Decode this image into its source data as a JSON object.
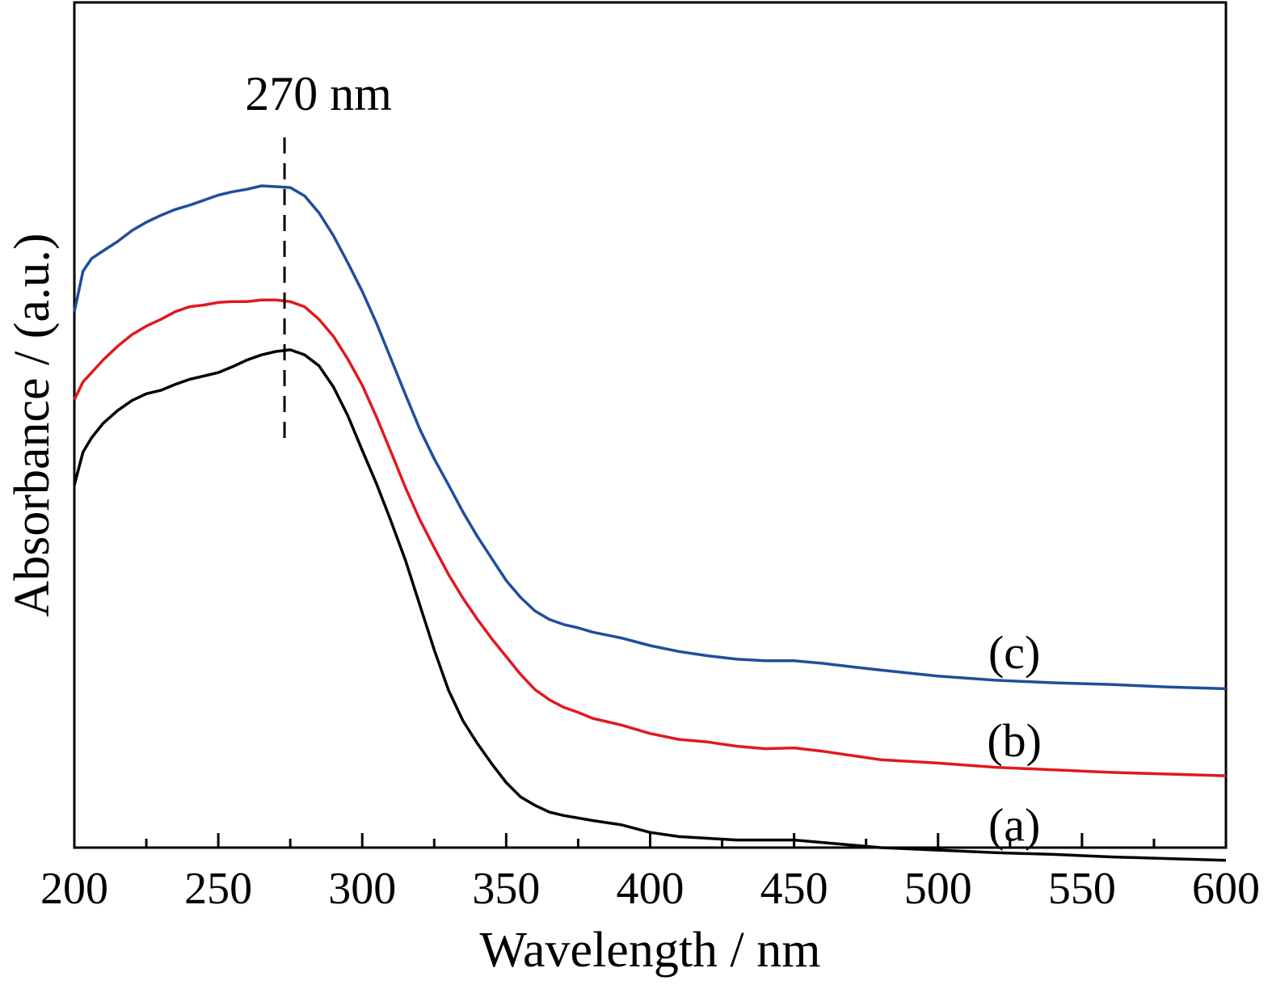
{
  "chart_data": {
    "type": "line",
    "title": "",
    "xlabel": "Wavelength / nm",
    "ylabel": "Absorbance / (a.u.)",
    "xlim": [
      200,
      600
    ],
    "ylim": [
      0,
      1
    ],
    "y_scale_note_free": true,
    "xticks": [
      200,
      250,
      300,
      350,
      400,
      450,
      500,
      550,
      600
    ],
    "grid": false,
    "legend": "none",
    "annotation": {
      "text": "270 nm",
      "x": 273
    },
    "series": [
      {
        "label": "(a)",
        "color": "#000000",
        "x": [
          200,
          203,
          206,
          210,
          215,
          220,
          225,
          230,
          235,
          240,
          245,
          250,
          255,
          260,
          265,
          270,
          275,
          280,
          285,
          290,
          295,
          300,
          305,
          310,
          315,
          320,
          325,
          330,
          335,
          340,
          345,
          350,
          355,
          360,
          365,
          370,
          375,
          380,
          390,
          400,
          410,
          420,
          430,
          440,
          450,
          460,
          470,
          480,
          500,
          520,
          540,
          560,
          580,
          600
        ],
        "y": [
          0.429,
          0.468,
          0.485,
          0.502,
          0.517,
          0.529,
          0.537,
          0.541,
          0.548,
          0.554,
          0.558,
          0.562,
          0.569,
          0.577,
          0.583,
          0.587,
          0.589,
          0.583,
          0.57,
          0.545,
          0.511,
          0.47,
          0.43,
          0.386,
          0.34,
          0.287,
          0.234,
          0.186,
          0.15,
          0.123,
          0.099,
          0.077,
          0.06,
          0.05,
          0.042,
          0.038,
          0.035,
          0.032,
          0.027,
          0.018,
          0.013,
          0.011,
          0.009,
          0.009,
          0.009,
          0.006,
          0.003,
          0.0,
          -0.003,
          -0.006,
          -0.008,
          -0.011,
          -0.013,
          -0.015
        ]
      },
      {
        "label": "(b)",
        "color": "#e0191e",
        "x": [
          200,
          203,
          206,
          210,
          215,
          220,
          225,
          230,
          235,
          240,
          245,
          250,
          255,
          260,
          265,
          270,
          275,
          280,
          285,
          290,
          295,
          300,
          305,
          310,
          315,
          320,
          325,
          330,
          335,
          340,
          345,
          350,
          355,
          360,
          365,
          370,
          375,
          380,
          390,
          400,
          410,
          420,
          430,
          440,
          450,
          460,
          470,
          480,
          500,
          520,
          540,
          560,
          580,
          600
        ],
        "y": [
          0.53,
          0.551,
          0.562,
          0.577,
          0.593,
          0.607,
          0.617,
          0.625,
          0.634,
          0.64,
          0.642,
          0.645,
          0.646,
          0.646,
          0.648,
          0.648,
          0.646,
          0.64,
          0.625,
          0.605,
          0.578,
          0.547,
          0.509,
          0.468,
          0.426,
          0.388,
          0.355,
          0.323,
          0.295,
          0.27,
          0.247,
          0.226,
          0.205,
          0.187,
          0.175,
          0.166,
          0.16,
          0.153,
          0.145,
          0.135,
          0.128,
          0.125,
          0.12,
          0.117,
          0.118,
          0.114,
          0.109,
          0.104,
          0.1,
          0.095,
          0.092,
          0.089,
          0.087,
          0.085
        ]
      },
      {
        "label": "(c)",
        "color": "#1f4e9c",
        "x": [
          200,
          203,
          206,
          210,
          215,
          220,
          225,
          230,
          235,
          240,
          245,
          250,
          255,
          260,
          265,
          270,
          275,
          280,
          285,
          290,
          295,
          300,
          305,
          310,
          315,
          320,
          325,
          330,
          335,
          340,
          345,
          350,
          355,
          360,
          365,
          370,
          375,
          380,
          390,
          400,
          410,
          420,
          430,
          440,
          450,
          460,
          470,
          480,
          500,
          520,
          540,
          560,
          580,
          600
        ],
        "y": [
          0.634,
          0.682,
          0.697,
          0.706,
          0.717,
          0.73,
          0.74,
          0.748,
          0.755,
          0.76,
          0.766,
          0.772,
          0.776,
          0.779,
          0.783,
          0.782,
          0.781,
          0.771,
          0.751,
          0.724,
          0.692,
          0.658,
          0.62,
          0.578,
          0.536,
          0.495,
          0.46,
          0.429,
          0.397,
          0.368,
          0.342,
          0.316,
          0.296,
          0.28,
          0.27,
          0.264,
          0.26,
          0.255,
          0.248,
          0.239,
          0.232,
          0.227,
          0.223,
          0.221,
          0.221,
          0.218,
          0.214,
          0.21,
          0.203,
          0.198,
          0.195,
          0.193,
          0.19,
          0.188
        ]
      }
    ]
  }
}
